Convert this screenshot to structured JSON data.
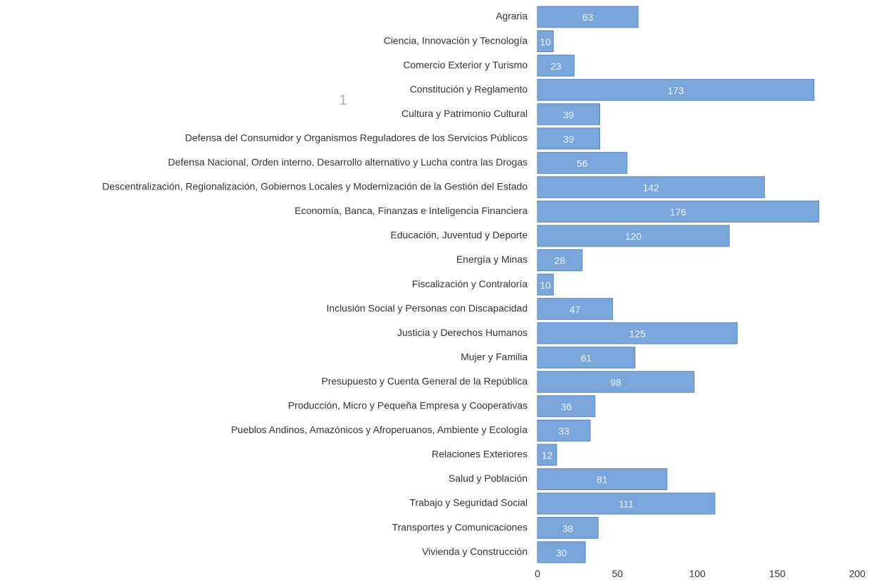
{
  "chart_data": {
    "type": "barh",
    "annotation": "1",
    "categories": [
      "Agraria",
      "Ciencia, Innovación y Tecnología",
      "Comercio Exterior y Turismo",
      "Constitución y Reglamento",
      "Cultura y Patrimonio Cultural",
      "Defensa del Consumidor y Organismos Reguladores de los Servicios Públicos",
      "Defensa Nacional, Orden interno, Desarrollo alternativo y Lucha contra las Drogas",
      "Descentralización, Regionalización, Gobiernos Locales y Modernización de la Gestión del Estado",
      "Economía, Banca, Finanzas e Inteligencia Financiera",
      "Educación, Juventud y Deporte",
      "Energía y Minas",
      "Fiscalización y Contraloría",
      "Inclusión Social y Personas con Discapacidad",
      "Justicia y Derechos Humanos",
      "Mujer y Familia",
      "Presupuesto y Cuenta General de la República",
      "Producción, Micro y Pequeña Empresa y Cooperativas",
      "Pueblos Andinos, Amazónicos y Afroperuanos, Ambiente y Ecología",
      "Relaciones Exteriores",
      "Salud y Población",
      "Trabajo y Seguridad Social",
      "Transportes y Comunicaciones",
      "Vivienda y Construcción"
    ],
    "values": [
      63,
      10,
      23,
      173,
      39,
      39,
      56,
      142,
      176,
      120,
      28,
      10,
      47,
      125,
      61,
      98,
      36,
      33,
      12,
      81,
      111,
      38,
      30
    ],
    "color": "#7aa6dc",
    "xlim": [
      0,
      200
    ],
    "xticks": [
      0,
      50,
      100,
      150,
      200
    ],
    "grid": false
  }
}
